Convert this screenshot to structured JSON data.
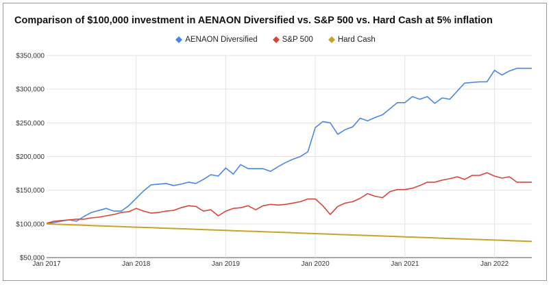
{
  "chart_data": {
    "type": "line",
    "title": "Comparison of $100,000 investment in AENAON Diversified vs. S&P 500 vs. Hard Cash at 5% inflation",
    "xlabel": "",
    "ylabel": "",
    "x_start": "2017-01",
    "x_ticks": [
      "Jan 2017",
      "Jan 2018",
      "Jan 2019",
      "Jan 2020",
      "Jan 2021",
      "Jan 2022"
    ],
    "y_ticks": [
      "$50,000",
      "$100,000",
      "$150,000",
      "$200,000",
      "$250,000",
      "$300,000",
      "$350,000"
    ],
    "ylim": [
      50000,
      350000
    ],
    "xlim": [
      "2017-01",
      "2022-06"
    ],
    "grid": true,
    "legend_position": "top",
    "series": [
      {
        "name": "AENAON Diversified",
        "color": "#4a86e8",
        "values": [
          101000,
          102000,
          104000,
          106000,
          104000,
          111000,
          117000,
          120000,
          123000,
          119000,
          119000,
          127000,
          138000,
          149000,
          158000,
          159000,
          160000,
          157000,
          159000,
          162000,
          160000,
          166000,
          173000,
          171000,
          183000,
          174000,
          188000,
          182000,
          182000,
          182000,
          178000,
          185000,
          191000,
          196000,
          200000,
          207000,
          243000,
          252000,
          250000,
          233000,
          240000,
          244000,
          257000,
          253000,
          258000,
          262000,
          271000,
          280000,
          280000,
          289000,
          285000,
          289000,
          279000,
          287000,
          285000,
          297000,
          309000,
          310000,
          311000,
          311000,
          328000,
          321000,
          327000,
          331000,
          331000,
          331000
        ]
      },
      {
        "name": "S&P 500",
        "color": "#db4437",
        "values": [
          101000,
          104000,
          105000,
          106000,
          107000,
          107000,
          109000,
          110000,
          112000,
          114000,
          117000,
          118000,
          123000,
          119000,
          116000,
          117000,
          119000,
          120000,
          124000,
          127000,
          126000,
          119000,
          121000,
          112000,
          119000,
          123000,
          124000,
          127000,
          121000,
          127000,
          129000,
          128000,
          129000,
          131000,
          133000,
          137000,
          137000,
          127000,
          114000,
          126000,
          131000,
          133000,
          138000,
          145000,
          141000,
          139000,
          148000,
          151000,
          151000,
          153000,
          157000,
          162000,
          162000,
          165000,
          167000,
          170000,
          166000,
          172000,
          172000,
          176000,
          171000,
          168000,
          170000,
          162000,
          162000,
          162000
        ]
      },
      {
        "name": "Hard Cash",
        "color": "#c9a227",
        "values": [
          100000,
          99600,
          99200,
          98800,
          98400,
          98000,
          97600,
          97200,
          96800,
          96400,
          96000,
          95600,
          95200,
          94800,
          94400,
          94000,
          93600,
          93200,
          92800,
          92400,
          92000,
          91600,
          91200,
          90800,
          90400,
          90000,
          89600,
          89200,
          88800,
          88400,
          88000,
          87600,
          87200,
          86800,
          86400,
          86000,
          85600,
          85200,
          84800,
          84400,
          84000,
          83600,
          83200,
          82800,
          82400,
          82000,
          81600,
          81200,
          80800,
          80400,
          80000,
          79600,
          79200,
          78800,
          78400,
          78000,
          77600,
          77200,
          76800,
          76400,
          76000,
          75600,
          75200,
          74800,
          74400,
          74000
        ]
      }
    ]
  }
}
